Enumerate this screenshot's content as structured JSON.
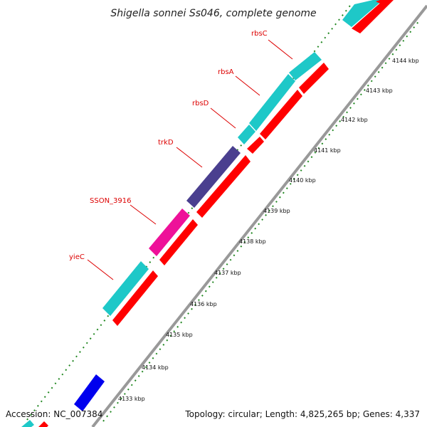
{
  "title": "Shigella sonnei Ss046, complete genome",
  "footer": {
    "accession": "Accession: NC_007384",
    "summary": "Topology: circular; Length: 4,825,265 bp; Genes: 4,337"
  },
  "colors": {
    "background": "#ffffff",
    "backbone": "#999999",
    "cds": "#ff0000",
    "gene_cyan": "#1ec8c8",
    "gene_purple": "#4a3f8f",
    "gene_magenta": "#ee1199",
    "gene_blue": "#0000ee",
    "tick_green": "#228822",
    "label_red": "#dd0000"
  },
  "gene_labels": [
    "rbsC",
    "rbsA",
    "rbsD",
    "trkD",
    "SSON_3916",
    "yieC"
  ],
  "tick_labels": [
    "4144 kbp",
    "4143 kbp",
    "4142 kbp",
    "4141 kbp",
    "4140 kbp",
    "4139 kbp",
    "4138 kbp",
    "4137 kbp",
    "4136 kbp",
    "4135 kbp",
    "4134 kbp",
    "4133 kbp"
  ]
}
